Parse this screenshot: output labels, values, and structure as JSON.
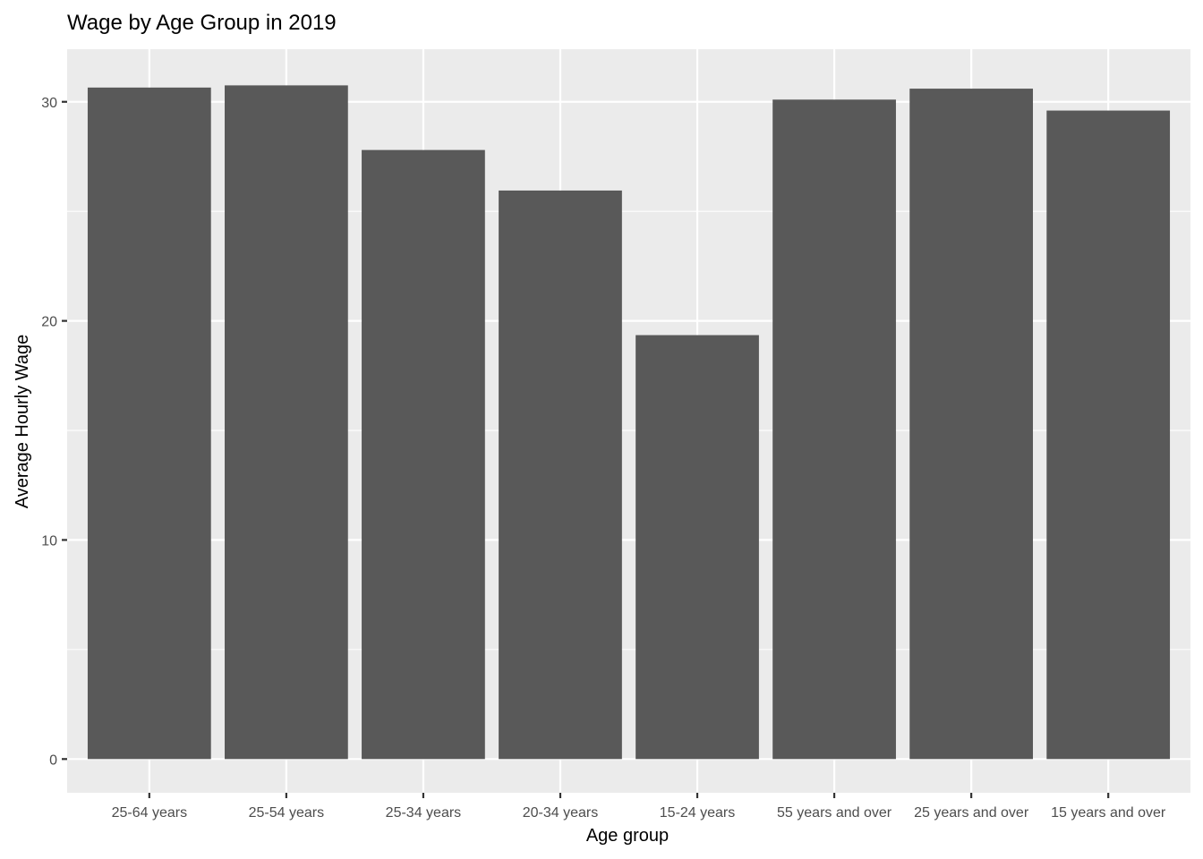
{
  "chart_data": {
    "type": "bar",
    "title": "Wage by Age Group in 2019",
    "xlabel": "Age group",
    "ylabel": "Average Hourly Wage",
    "categories": [
      "25-64 years",
      "25-54 years",
      "25-34 years",
      "20-34 years",
      "15-24 years",
      "55 years and over",
      "25 years and over",
      "15 years and over"
    ],
    "values": [
      30.65,
      30.75,
      27.8,
      25.95,
      19.35,
      30.1,
      30.6,
      29.6
    ],
    "ylim": [
      -1.54,
      32.4
    ],
    "yticks": [
      0,
      10,
      20,
      30
    ],
    "grid": true,
    "colors": {
      "panel": "#ebebeb",
      "bar": "#595959",
      "grid": "#ffffff",
      "tick": "#333333"
    }
  }
}
